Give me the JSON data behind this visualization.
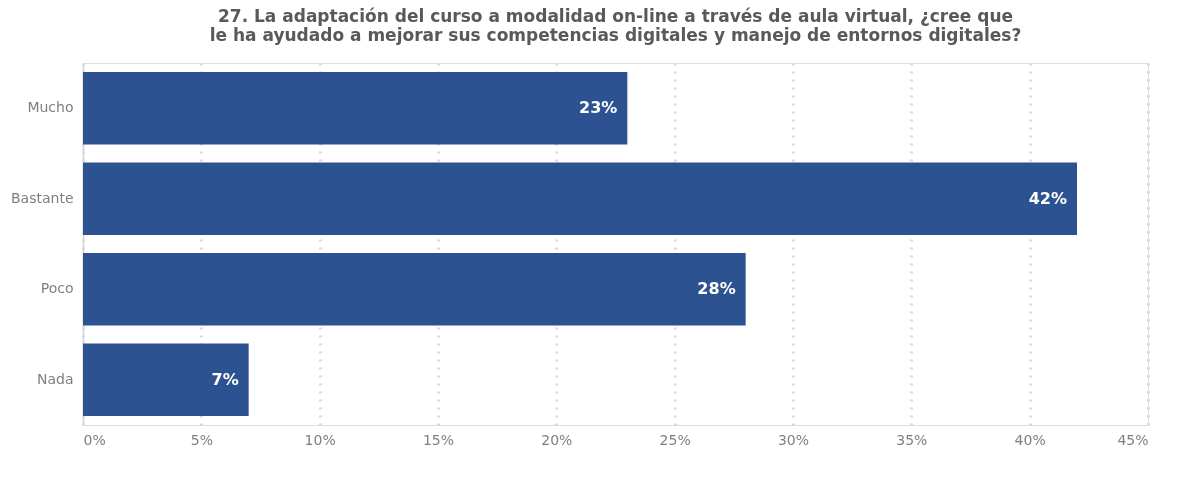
{
  "chart_data": {
    "type": "bar",
    "orientation": "horizontal",
    "title": "27. La adaptación del curso a modalidad on-line a través de aula virtual, ¿cree que le ha ayudado a mejorar sus competencias digitales y manejo de entornos digitales?",
    "categories": [
      "Mucho",
      "Bastante",
      "Poco",
      "Nada"
    ],
    "values": [
      23,
      42,
      28,
      7
    ],
    "value_labels": [
      "23%",
      "42%",
      "28%",
      "7%"
    ],
    "color": "#2d5291",
    "xlim": [
      0,
      45
    ],
    "xticks": [
      {
        "value": 0,
        "label": "0%"
      },
      {
        "value": 5,
        "label": "5%"
      },
      {
        "value": 10,
        "label": "10%"
      },
      {
        "value": 15,
        "label": "15%"
      },
      {
        "value": 20,
        "label": "20%"
      },
      {
        "value": 25,
        "label": "25%"
      },
      {
        "value": 30,
        "label": "30%"
      },
      {
        "value": 35,
        "label": "35%"
      },
      {
        "value": 40,
        "label": "40%"
      },
      {
        "value": 45,
        "label": "45%"
      }
    ],
    "grid": "x"
  }
}
